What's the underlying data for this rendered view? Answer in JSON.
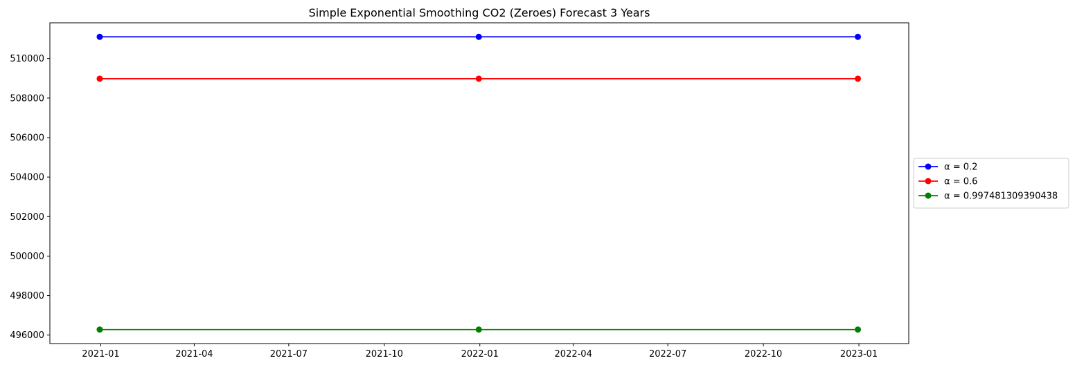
{
  "chart_data": {
    "type": "line",
    "title": "Simple Exponential Smoothing CO2 (Zeroes) Forecast 3 Years",
    "xlabel": "",
    "ylabel": "",
    "x": [
      "2020-12-31",
      "2021-12-31",
      "2022-12-31"
    ],
    "series": [
      {
        "name": "α = 0.2",
        "color": "#0000ff",
        "values": [
          511100,
          511100,
          511100
        ]
      },
      {
        "name": "α = 0.6",
        "color": "#ff0000",
        "values": [
          508980,
          508980,
          508980
        ]
      },
      {
        "name": "α = 0.997481309390438",
        "color": "#008000",
        "values": [
          496280,
          496280,
          496280
        ]
      }
    ],
    "xticks": [
      "2021-01",
      "2021-04",
      "2021-07",
      "2021-10",
      "2022-01",
      "2022-04",
      "2022-07",
      "2022-10",
      "2023-01"
    ],
    "yticks": [
      496000,
      498000,
      500000,
      502000,
      504000,
      506000,
      508000,
      510000
    ],
    "xlim": [
      "2020-11-13",
      "2023-02-18"
    ],
    "ylim": [
      495570,
      511810
    ],
    "marker": "circle",
    "grid": false,
    "legend_position": "center-right outside"
  }
}
